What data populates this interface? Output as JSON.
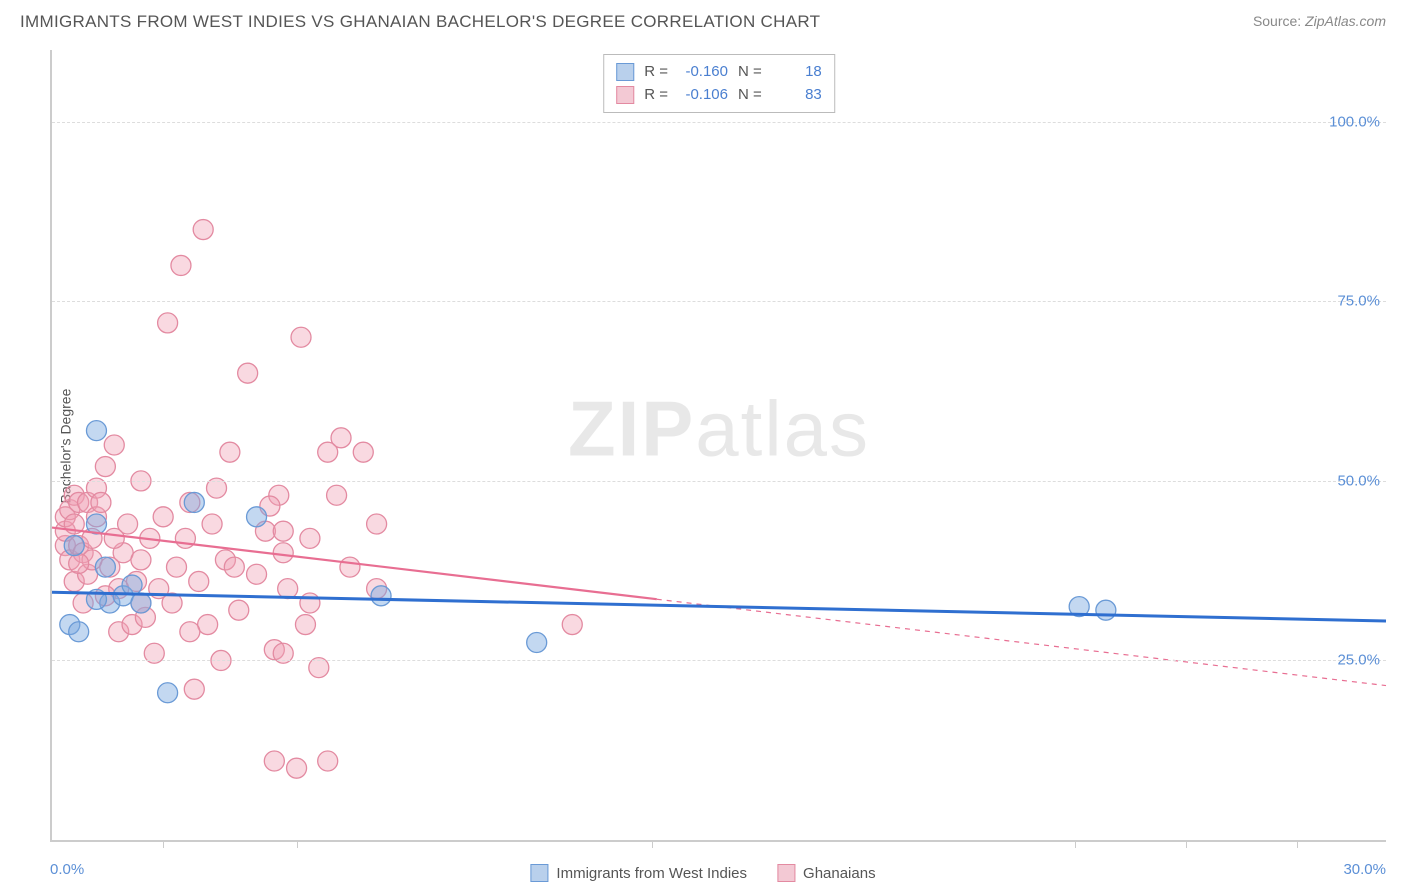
{
  "header": {
    "title": "IMMIGRANTS FROM WEST INDIES VS GHANAIAN BACHELOR'S DEGREE CORRELATION CHART",
    "source_prefix": "Source: ",
    "source": "ZipAtlas.com"
  },
  "chart": {
    "type": "scatter",
    "ylabel": "Bachelor's Degree",
    "xlim": [
      0,
      30
    ],
    "ylim": [
      0,
      110
    ],
    "yticks": [
      {
        "v": 25,
        "label": "25.0%"
      },
      {
        "v": 50,
        "label": "50.0%"
      },
      {
        "v": 75,
        "label": "75.0%"
      },
      {
        "v": 100,
        "label": "100.0%"
      }
    ],
    "xticks_major": [
      0,
      30
    ],
    "xtick_labels": [
      {
        "v": 0,
        "label": "0.0%",
        "align": "left"
      },
      {
        "v": 30,
        "label": "30.0%",
        "align": "right"
      }
    ],
    "xticks_minor": [
      2.5,
      5.5,
      13.5,
      23,
      25.5,
      28
    ],
    "background_color": "#ffffff",
    "grid_color": "#dddddd",
    "axis_color": "#cccccc",
    "tick_label_color": "#5b8fd6",
    "marker_radius": 10,
    "marker_stroke_width": 1.3,
    "trend_line_width": 2.2,
    "watermark": "ZIPatlas",
    "series": [
      {
        "id": "west_indies",
        "label": "Immigrants from West Indies",
        "color_fill": "rgba(122,168,224,0.45)",
        "color_stroke": "#6a9ad6",
        "swatch_fill": "#b9d0ec",
        "swatch_border": "#6a9ad6",
        "R": "-0.160",
        "N": "18",
        "trend": {
          "x1": 0,
          "y1": 34.5,
          "x2": 30,
          "y2": 30.5,
          "dash_from_x": null,
          "color": "#2f6fd0"
        },
        "points": [
          [
            1.0,
            57
          ],
          [
            0.4,
            30
          ],
          [
            0.6,
            29
          ],
          [
            1.3,
            33
          ],
          [
            1.0,
            33.5
          ],
          [
            1.6,
            34
          ],
          [
            2.0,
            33
          ],
          [
            2.6,
            20.5
          ],
          [
            4.6,
            45
          ],
          [
            7.4,
            34
          ],
          [
            10.9,
            27.5
          ],
          [
            23.1,
            32.5
          ],
          [
            23.7,
            32
          ],
          [
            3.2,
            47
          ],
          [
            1.8,
            35.5
          ],
          [
            1.2,
            38
          ],
          [
            1.0,
            44
          ],
          [
            0.5,
            41
          ]
        ]
      },
      {
        "id": "ghanaians",
        "label": "Ghanaians",
        "color_fill": "rgba(240,160,180,0.40)",
        "color_stroke": "#e38aa1",
        "swatch_fill": "#f3c9d4",
        "swatch_border": "#e38aa1",
        "R": "-0.106",
        "N": "83",
        "trend": {
          "x1": 0,
          "y1": 43.5,
          "x2": 30,
          "y2": 21.5,
          "dash_from_x": 13.6,
          "color": "#e86e92"
        },
        "points": [
          [
            0.3,
            41
          ],
          [
            0.3,
            43
          ],
          [
            0.3,
            45
          ],
          [
            0.4,
            39
          ],
          [
            0.4,
            46
          ],
          [
            0.5,
            48
          ],
          [
            0.5,
            44
          ],
          [
            0.5,
            36
          ],
          [
            0.6,
            41
          ],
          [
            0.6,
            47
          ],
          [
            0.7,
            33
          ],
          [
            0.7,
            40
          ],
          [
            0.8,
            47
          ],
          [
            0.8,
            37
          ],
          [
            0.9,
            42
          ],
          [
            0.9,
            39
          ],
          [
            1.0,
            49
          ],
          [
            1.0,
            45
          ],
          [
            1.1,
            47
          ],
          [
            1.2,
            52
          ],
          [
            1.3,
            38
          ],
          [
            1.4,
            55
          ],
          [
            1.5,
            29
          ],
          [
            1.5,
            35
          ],
          [
            1.6,
            40
          ],
          [
            1.7,
            44
          ],
          [
            1.8,
            30
          ],
          [
            1.9,
            36
          ],
          [
            2.0,
            39
          ],
          [
            2.0,
            50
          ],
          [
            2.1,
            31
          ],
          [
            2.2,
            42
          ],
          [
            2.3,
            26
          ],
          [
            2.4,
            35
          ],
          [
            2.5,
            45
          ],
          [
            2.6,
            72
          ],
          [
            2.7,
            33
          ],
          [
            2.8,
            38
          ],
          [
            2.9,
            80
          ],
          [
            3.0,
            42
          ],
          [
            3.1,
            47
          ],
          [
            3.2,
            21
          ],
          [
            3.3,
            36
          ],
          [
            3.4,
            85
          ],
          [
            3.5,
            30
          ],
          [
            3.6,
            44
          ],
          [
            3.7,
            49
          ],
          [
            3.8,
            25
          ],
          [
            3.9,
            39
          ],
          [
            4.0,
            54
          ],
          [
            4.2,
            32
          ],
          [
            4.4,
            65
          ],
          [
            4.6,
            37
          ],
          [
            4.8,
            43
          ],
          [
            5.0,
            11
          ],
          [
            5.1,
            48
          ],
          [
            5.3,
            35
          ],
          [
            5.5,
            10
          ],
          [
            5.6,
            70
          ],
          [
            5.7,
            30
          ],
          [
            5.8,
            42
          ],
          [
            6.0,
            24
          ],
          [
            6.2,
            54
          ],
          [
            6.2,
            11
          ],
          [
            6.4,
            48
          ],
          [
            6.5,
            56
          ],
          [
            6.7,
            38
          ],
          [
            7.0,
            54
          ],
          [
            7.3,
            44
          ],
          [
            7.3,
            35
          ],
          [
            5.0,
            26.5
          ],
          [
            5.2,
            40
          ],
          [
            5.8,
            33
          ],
          [
            4.9,
            46.5
          ],
          [
            5.2,
            43
          ],
          [
            4.1,
            38
          ],
          [
            3.1,
            29
          ],
          [
            2.0,
            33
          ],
          [
            1.2,
            34
          ],
          [
            1.4,
            42
          ],
          [
            0.6,
            38.5
          ],
          [
            11.7,
            30
          ],
          [
            5.2,
            26
          ]
        ]
      }
    ]
  },
  "legend": {
    "R_label": "R =",
    "N_label": "N ="
  }
}
